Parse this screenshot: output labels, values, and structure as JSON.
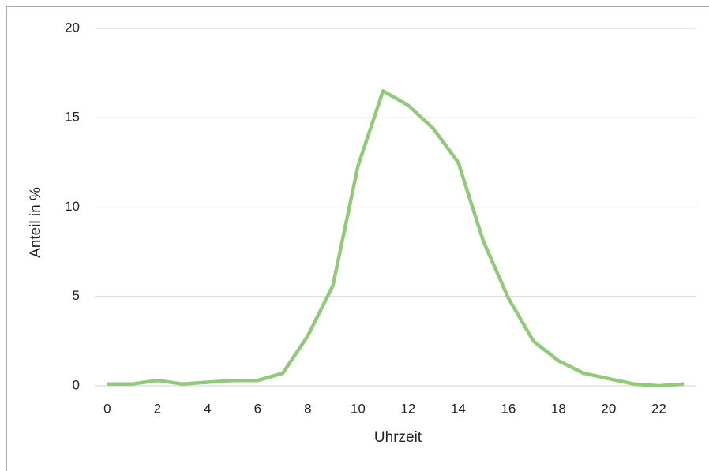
{
  "chart_data": {
    "type": "line",
    "x_label": "Uhrzeit",
    "y_label": "Anteil in %",
    "x": [
      0,
      1,
      2,
      3,
      4,
      5,
      6,
      7,
      8,
      9,
      10,
      11,
      12,
      13,
      14,
      15,
      16,
      17,
      18,
      19,
      20,
      21,
      22,
      23
    ],
    "series": [
      {
        "color": "#92c97a",
        "values": [
          0.1,
          0.1,
          0.3,
          0.1,
          0.2,
          0.3,
          0.3,
          0.7,
          2.8,
          5.6,
          12.3,
          16.5,
          15.7,
          14.4,
          12.5,
          8.1,
          4.9,
          2.5,
          1.4,
          0.7,
          0.4,
          0.1,
          0.0,
          0.1
        ]
      }
    ],
    "xlim": [
      -0.5,
      23.5
    ],
    "xticks": [
      0,
      2,
      4,
      6,
      8,
      10,
      12,
      14,
      16,
      18,
      20,
      22
    ],
    "ylim": [
      0,
      20
    ],
    "yticks": [
      0,
      5,
      10,
      15,
      20
    ],
    "grid": true
  }
}
